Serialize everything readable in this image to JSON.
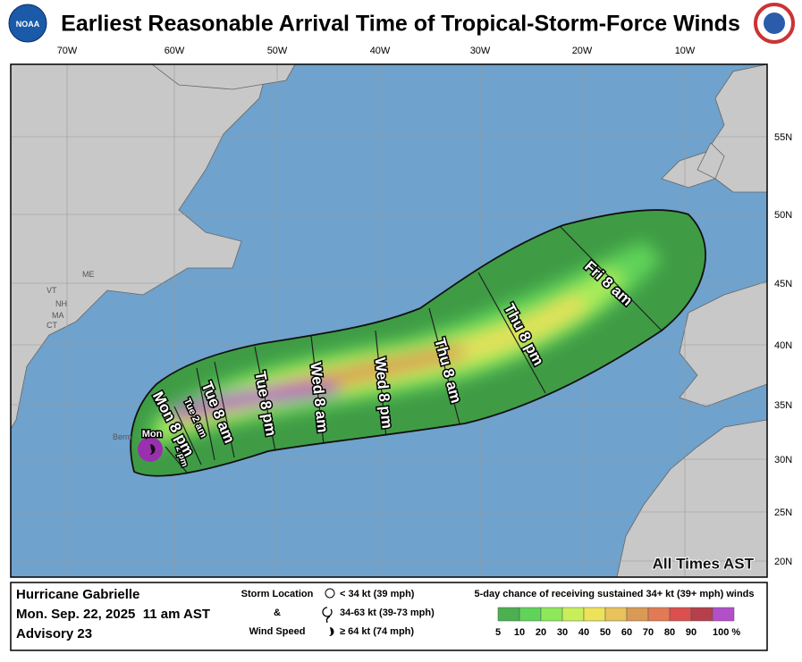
{
  "title": "Earliest Reasonable Arrival Time of Tropical-Storm-Force Winds",
  "longitude_labels": [
    "70W",
    "60W",
    "50W",
    "40W",
    "30W",
    "20W",
    "10W"
  ],
  "latitude_labels": [
    "55N",
    "50N",
    "45N",
    "40N",
    "35N",
    "30N",
    "25N",
    "20N"
  ],
  "place_labels": [
    "ME",
    "VT",
    "NH",
    "MA",
    "CT",
    "Berm"
  ],
  "arrival_times": [
    "Mon",
    "2 pm",
    "Mon 8 pm",
    "Tue 2 am",
    "Tue 8 am",
    "Tue 8 pm",
    "Wed 8 am",
    "Wed 8 pm",
    "Thu 8 am",
    "Thu 8 pm",
    "Fri 8 am"
  ],
  "timezone_note": "All Times AST",
  "storm": {
    "name": "Hurricane Gabrielle",
    "date": "Mon. Sep. 22, 2025  11 am AST",
    "advisory": "Advisory 23"
  },
  "storm_legend": {
    "heading_top": "Storm Location",
    "heading_mid": "&",
    "heading_bottom": "Wind Speed",
    "items": [
      "< 34 kt (39 mph)",
      "34-63 kt (39-73 mph)",
      "≥ 64 kt (74 mph)"
    ]
  },
  "probability_legend": {
    "title": "5-day chance of receiving sustained 34+ kt (39+ mph) winds",
    "labels": [
      "5",
      "10",
      "20",
      "30",
      "40",
      "50",
      "60",
      "70",
      "80",
      "90",
      "100 %"
    ],
    "colors": [
      "#4caf50",
      "#5fd35a",
      "#8de85a",
      "#c8ef5a",
      "#ece35a",
      "#e8c25a",
      "#d99a55",
      "#e27a55",
      "#d9504f",
      "#b53f4a",
      "#b150c8"
    ]
  }
}
